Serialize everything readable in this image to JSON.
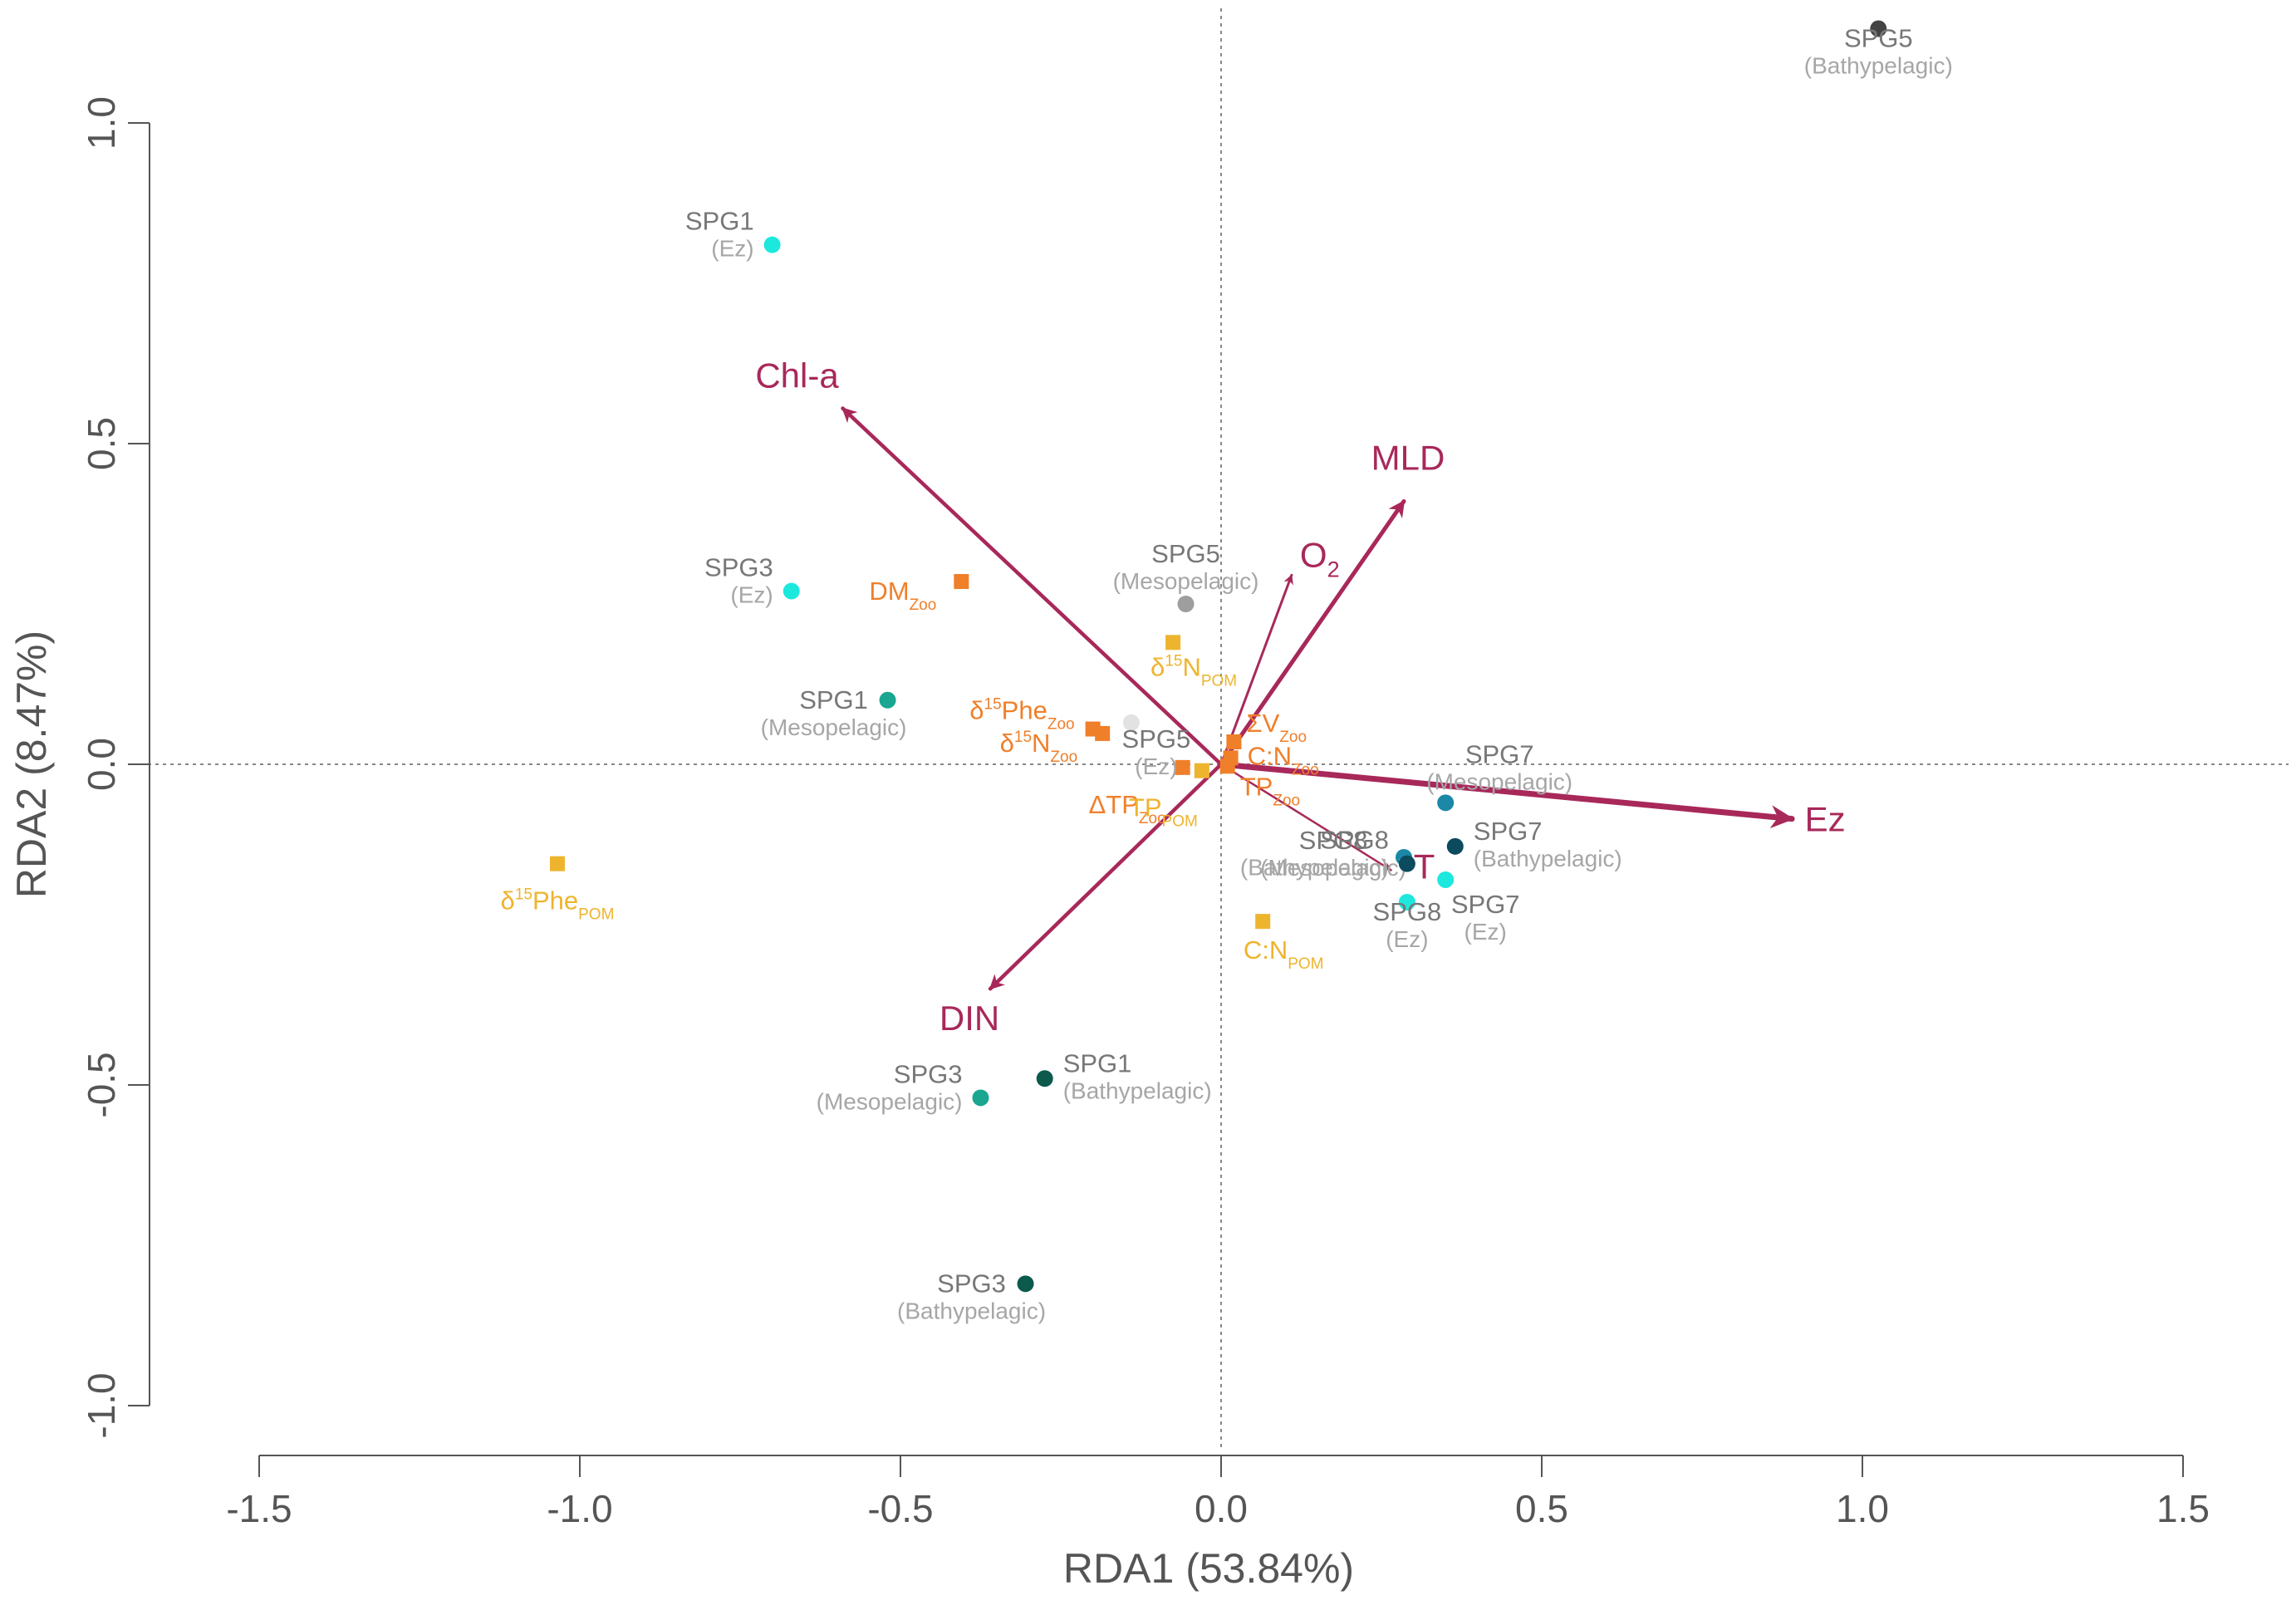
{
  "colors": {
    "vector": "#a8285a",
    "zoo_var": "#f07f2a",
    "pom_var": "#eeb42e",
    "axis": "#555555",
    "guide": "#888888"
  },
  "chart_data": {
    "type": "scatter",
    "subtype": "rda_triplot",
    "xlabel": "RDA1 (53.84%)",
    "ylabel": "RDA2 (8.47%)",
    "xlim": [
      -1.5,
      1.5
    ],
    "ylim": [
      -1.0,
      1.0
    ],
    "xticks": [
      -1.5,
      -1.0,
      -0.5,
      0.0,
      0.5,
      1.0,
      1.5
    ],
    "xtick_labels": [
      "-1.5",
      "-1.0",
      "-0.5",
      "0.0",
      "0.5",
      "1.0",
      "1.5"
    ],
    "yticks": [
      -1.0,
      -0.5,
      0.0,
      0.5,
      1.0
    ],
    "ytick_labels": [
      "-1.0",
      "-0.5",
      "0.0",
      "0.5",
      "1.0"
    ],
    "reference_lines": {
      "x": 0,
      "y": 0
    },
    "sites": [
      {
        "name": "SPG1",
        "zone": "(Ez)",
        "x": -0.7,
        "y": 0.81,
        "color": "#1de8de",
        "label_side": "left"
      },
      {
        "name": "SPG3",
        "zone": "(Ez)",
        "x": -0.67,
        "y": 0.27,
        "color": "#1de8de",
        "label_side": "left"
      },
      {
        "name": "SPG1",
        "zone": "(Mesopelagic)",
        "x": -0.52,
        "y": 0.1,
        "color": "#1aa690",
        "label_side": "below-left"
      },
      {
        "name": "SPG5",
        "zone": "(Mesopelagic)",
        "x": -0.055,
        "y": 0.25,
        "color": "#9e9e9e",
        "label_side": "above"
      },
      {
        "name": "SPG5",
        "zone": "(Ez)",
        "x": -0.14,
        "y": 0.065,
        "color": "#e2e2e2",
        "label_side": "right-below"
      },
      {
        "name": "SPG5",
        "zone": "(Bathypelagic)",
        "x": 1.025,
        "y": 1.147,
        "color": "#444444",
        "label_side": "below"
      },
      {
        "name": "SPG7",
        "zone": "(Mesopelagic)",
        "x": 0.35,
        "y": -0.06,
        "color": "#1a88a6",
        "label_side": "above-right"
      },
      {
        "name": "SPG7",
        "zone": "(Bathypelagic)",
        "x": 0.365,
        "y": -0.128,
        "color": "#0c4a5e",
        "label_side": "right"
      },
      {
        "name": "SPG7",
        "zone": "(Ez)",
        "x": 0.35,
        "y": -0.18,
        "color": "#1de8de",
        "label_side": "below-right"
      },
      {
        "name": "SPG8",
        "zone": "(Mesopelagic)",
        "x": 0.285,
        "y": -0.145,
        "color": "#1a88a6",
        "label_side": "above-left"
      },
      {
        "name": "SPG8",
        "zone": "(Bathypelagic)",
        "x": 0.29,
        "y": -0.155,
        "color": "#0c4a5e",
        "label_side": "left"
      },
      {
        "name": "SPG8",
        "zone": "(Ez)",
        "x": 0.29,
        "y": -0.215,
        "color": "#1de8de",
        "label_side": "below"
      },
      {
        "name": "SPG1",
        "zone": "(Bathypelagic)",
        "x": -0.275,
        "y": -0.49,
        "color": "#0b5a4c",
        "label_side": "right"
      },
      {
        "name": "SPG3",
        "zone": "(Mesopelagic)",
        "x": -0.375,
        "y": -0.52,
        "color": "#1aa690",
        "label_side": "left"
      },
      {
        "name": "SPG3",
        "zone": "(Bathypelagic)",
        "x": -0.305,
        "y": -0.81,
        "color": "#0b5a4c",
        "label_side": "below-left"
      }
    ],
    "response_variables": [
      {
        "label": "DM",
        "sub": "Zoo",
        "x": -0.405,
        "y": 0.285,
        "group": "zoo"
      },
      {
        "label": "δ15Phe",
        "sub": "Zoo",
        "x": -0.2,
        "y": 0.055,
        "group": "zoo"
      },
      {
        "label": "δ15N",
        "sub": "Zoo",
        "x": -0.185,
        "y": 0.048,
        "group": "zoo"
      },
      {
        "label": "ΣV",
        "sub": "Zoo",
        "x": 0.02,
        "y": 0.035,
        "group": "zoo"
      },
      {
        "label": "C:N",
        "sub": "Zoo",
        "x": 0.015,
        "y": 0.01,
        "group": "zoo"
      },
      {
        "label": "TP",
        "sub": "Zoo",
        "x": 0.01,
        "y": -0.003,
        "group": "zoo"
      },
      {
        "label": "ΔTP",
        "sub": "Zoo",
        "x": -0.06,
        "y": -0.005,
        "group": "zoo"
      },
      {
        "label": "TP",
        "sub": "POM",
        "x": -0.03,
        "y": -0.01,
        "group": "pom"
      },
      {
        "label": "δ15N",
        "sub": "POM",
        "x": -0.075,
        "y": 0.19,
        "group": "pom"
      },
      {
        "label": "δ15Phe",
        "sub": "POM",
        "x": -1.035,
        "y": -0.155,
        "group": "pom"
      },
      {
        "label": "C:N",
        "sub": "POM",
        "x": 0.065,
        "y": -0.245,
        "group": "pom"
      }
    ],
    "explanatory_vectors": [
      {
        "name": "Chl-a",
        "x": -0.59,
        "y": 0.555,
        "weight": 4.5
      },
      {
        "name": "MLD",
        "x": 0.285,
        "y": 0.41,
        "weight": 5
      },
      {
        "name": "O",
        "sub": "2",
        "x": 0.11,
        "y": 0.295,
        "weight": 3
      },
      {
        "name": "Ez",
        "x": 0.89,
        "y": -0.085,
        "weight": 7
      },
      {
        "name": "T",
        "x": 0.265,
        "y": -0.165,
        "weight": 2.5
      },
      {
        "name": "DIN",
        "x": -0.36,
        "y": -0.35,
        "weight": 4.5
      }
    ]
  }
}
